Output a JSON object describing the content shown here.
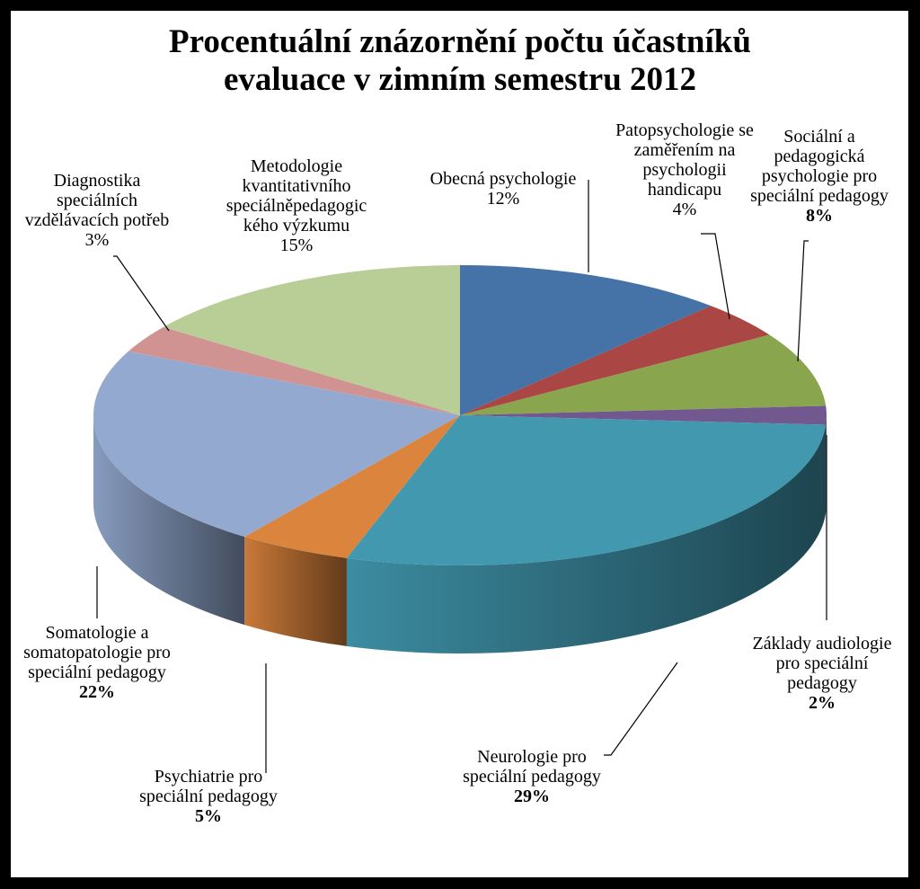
{
  "chart_data": {
    "type": "pie",
    "style": "3d",
    "title": [
      "Procentuální znázornění počtu účastníků",
      "evaluace v zimním semestru 2012"
    ],
    "slices": [
      {
        "lines": [
          "Obecná psychologie"
        ],
        "pct_label": "12%",
        "value": 12,
        "color": "#4572a7"
      },
      {
        "lines": [
          "Patopsychologie se",
          "zaměřením na",
          "psychologii",
          "handicapu"
        ],
        "pct_label": "4%",
        "value": 4,
        "color": "#aa4643"
      },
      {
        "lines": [
          "Sociální a",
          "pedagogická",
          "psychologie  pro",
          "speciální pedagogy"
        ],
        "pct_label": "8%",
        "value": 8,
        "color": "#89a54e"
      },
      {
        "lines": [
          "Základy audiologie",
          "pro speciální",
          "pedagogy"
        ],
        "pct_label": "2%",
        "value": 2,
        "color": "#71588f"
      },
      {
        "lines": [
          "Neurologie pro",
          "speciální pedagogy"
        ],
        "pct_label": "29%",
        "value": 29,
        "color": "#4198af"
      },
      {
        "lines": [
          "Psychiatrie pro",
          "speciální pedagogy"
        ],
        "pct_label": "5%",
        "value": 5,
        "color": "#db843d"
      },
      {
        "lines": [
          "Somatologie a",
          "somatopatologie pro",
          "speciální pedagogy"
        ],
        "pct_label": "22%",
        "value": 22,
        "color": "#93a9cf"
      },
      {
        "lines": [
          "Diagnostika",
          "speciálních",
          "vzdělávacích potřeb"
        ],
        "pct_label": "3%",
        "value": 3,
        "color": "#d19392"
      },
      {
        "lines": [
          "Metodologie",
          "kvantitativního",
          "speciálněpedagogic",
          "kého výzkumu"
        ],
        "pct_label": "15%",
        "value": 15,
        "color": "#b9cd96"
      }
    ]
  }
}
